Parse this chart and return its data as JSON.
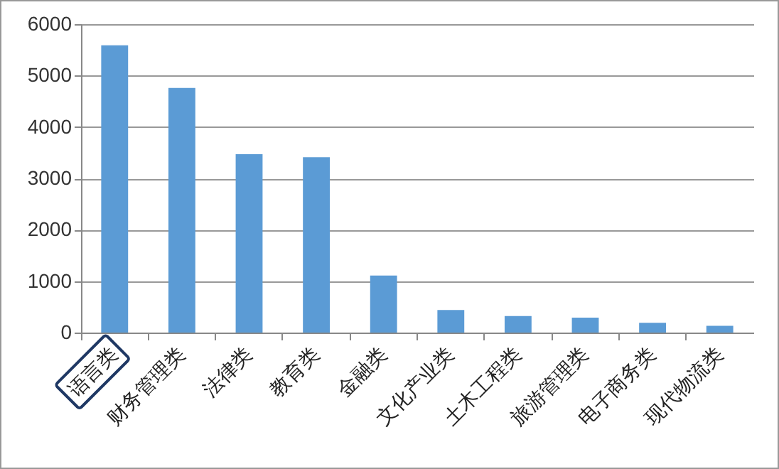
{
  "chart_data": {
    "type": "bar",
    "categories": [
      "语言类",
      "财务管理类",
      "法律类",
      "教育类",
      "金融类",
      "文化产业类",
      "土木工程类",
      "旅游管理类",
      "电子商务类",
      "现代物流类"
    ],
    "values": [
      5590,
      4760,
      3470,
      3410,
      1110,
      440,
      320,
      290,
      190,
      130
    ],
    "color": "#5b9bd5",
    "ylim": [
      0,
      6000
    ],
    "yticks": [
      0,
      1000,
      2000,
      3000,
      4000,
      5000,
      6000
    ],
    "grid": "y"
  }
}
